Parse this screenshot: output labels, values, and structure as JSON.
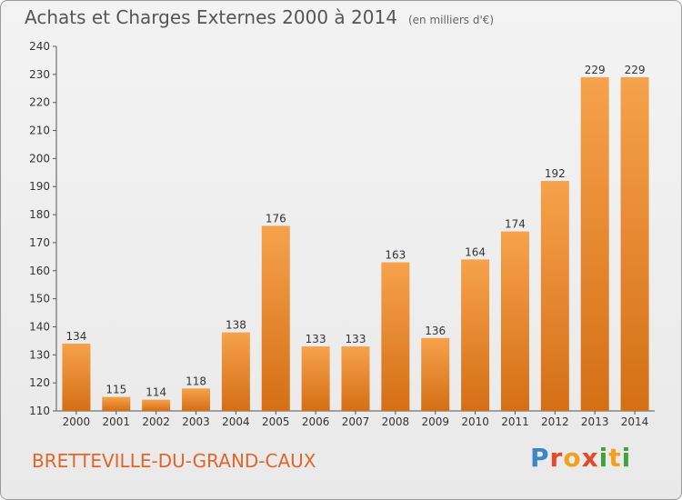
{
  "header": {
    "title": "Achats et Charges Externes 2000 à 2014",
    "unit": "(en milliers d'€)"
  },
  "footer": {
    "commune": "BRETTEVILLE-DU-GRAND-CAUX",
    "logo_letters": [
      {
        "ch": "P",
        "color": "#3d86c6"
      },
      {
        "ch": "r",
        "color": "#e14b2a"
      },
      {
        "ch": "o",
        "color": "#f2a01d"
      },
      {
        "ch": "x",
        "color": "#e14b2a"
      },
      {
        "ch": "i",
        "color": "#3fa33a"
      },
      {
        "ch": "t",
        "color": "#f2a01d"
      },
      {
        "ch": "i",
        "color": "#3fa33a"
      }
    ]
  },
  "colors": {
    "bar_light": "#f6a24c",
    "bar_dark": "#d46f15",
    "accent": "#e0662a"
  },
  "chart_data": {
    "type": "bar",
    "title": "Achats et Charges Externes 2000 à 2014",
    "subtitle": "(en milliers d'€)",
    "xlabel": "",
    "ylabel": "",
    "categories": [
      "2000",
      "2001",
      "2002",
      "2003",
      "2004",
      "2005",
      "2006",
      "2007",
      "2008",
      "2009",
      "2010",
      "2011",
      "2012",
      "2013",
      "2014"
    ],
    "values": [
      134,
      115,
      114,
      118,
      138,
      176,
      133,
      133,
      163,
      136,
      164,
      174,
      192,
      229,
      229
    ],
    "ylim": [
      110,
      240
    ],
    "yticks": [
      110,
      120,
      130,
      140,
      150,
      160,
      170,
      180,
      190,
      200,
      210,
      220,
      230,
      240
    ],
    "grid": false,
    "legend": "none"
  }
}
